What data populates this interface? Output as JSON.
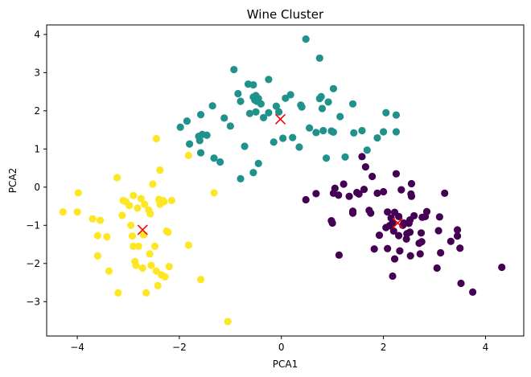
{
  "chart_data": {
    "type": "scatter",
    "title": "Wine Cluster",
    "xlabel": "PCA1",
    "ylabel": "PCA2",
    "xlim": [
      -4.6,
      4.75
    ],
    "ylim": [
      -3.9,
      4.25
    ],
    "xticks": [
      -4,
      -2,
      0,
      2,
      4
    ],
    "yticks": [
      -3,
      -2,
      -1,
      0,
      1,
      2,
      3,
      4
    ],
    "grid": false,
    "colors": {
      "cluster_0": "#440154",
      "cluster_1": "#21918c",
      "cluster_2": "#fde725",
      "centroid": "#ff0000"
    },
    "series": [
      {
        "cluster": 0,
        "color": "#440154",
        "points": [
          [
            0.48,
            -0.33
          ],
          [
            0.68,
            -0.17
          ],
          [
            0.98,
            -0.88
          ],
          [
            1.0,
            -0.94
          ],
          [
            1.02,
            -0.16
          ],
          [
            1.05,
            -0.03
          ],
          [
            1.12,
            -0.21
          ],
          [
            1.13,
            -1.78
          ],
          [
            1.22,
            0.08
          ],
          [
            1.33,
            -0.24
          ],
          [
            1.4,
            -0.68
          ],
          [
            1.4,
            -0.63
          ],
          [
            1.48,
            -0.14
          ],
          [
            1.52,
            -0.18
          ],
          [
            1.58,
            0.8
          ],
          [
            1.62,
            -0.06
          ],
          [
            1.65,
            0.53
          ],
          [
            1.72,
            -0.61
          ],
          [
            1.75,
            -0.68
          ],
          [
            1.78,
            0.28
          ],
          [
            1.82,
            -1.62
          ],
          [
            1.88,
            -0.16
          ],
          [
            1.92,
            -1.26
          ],
          [
            2.0,
            -0.12
          ],
          [
            2.05,
            -1.06
          ],
          [
            2.08,
            -0.65
          ],
          [
            2.08,
            -1.61
          ],
          [
            2.12,
            -1.01
          ],
          [
            2.15,
            -0.81
          ],
          [
            2.18,
            -0.93
          ],
          [
            2.18,
            -2.33
          ],
          [
            2.2,
            -1.15
          ],
          [
            2.22,
            -0.66
          ],
          [
            2.22,
            -1.88
          ],
          [
            2.25,
            0.35
          ],
          [
            2.3,
            -0.77
          ],
          [
            2.3,
            -1.27
          ],
          [
            2.32,
            -1.67
          ],
          [
            2.35,
            -0.07
          ],
          [
            2.38,
            -1.0
          ],
          [
            2.4,
            -0.94
          ],
          [
            2.45,
            -1.36
          ],
          [
            2.46,
            -1.22
          ],
          [
            2.5,
            -0.95
          ],
          [
            2.52,
            -0.86
          ],
          [
            2.52,
            -1.18
          ],
          [
            2.53,
            -1.8
          ],
          [
            2.54,
            -0.18
          ],
          [
            2.55,
            0.09
          ],
          [
            2.55,
            -0.24
          ],
          [
            2.6,
            -0.75
          ],
          [
            2.7,
            -1.47
          ],
          [
            2.72,
            -1.75
          ],
          [
            2.74,
            -1.2
          ],
          [
            2.75,
            -1.43
          ],
          [
            2.76,
            -0.79
          ],
          [
            2.82,
            -0.77
          ],
          [
            2.85,
            -0.64
          ],
          [
            3.05,
            -2.12
          ],
          [
            3.08,
            -1.14
          ],
          [
            3.1,
            -0.78
          ],
          [
            3.12,
            -1.72
          ],
          [
            3.2,
            -0.16
          ],
          [
            3.32,
            -1.42
          ],
          [
            3.45,
            -1.12
          ],
          [
            3.45,
            -1.28
          ],
          [
            3.5,
            -1.6
          ],
          [
            3.52,
            -2.52
          ],
          [
            3.75,
            -2.75
          ],
          [
            4.32,
            -2.1
          ]
        ]
      },
      {
        "cluster": 1,
        "color": "#21918c",
        "points": [
          [
            -1.98,
            1.57
          ],
          [
            -1.85,
            1.73
          ],
          [
            -1.8,
            1.13
          ],
          [
            -1.62,
            1.33
          ],
          [
            -1.6,
            1.22
          ],
          [
            -1.58,
            0.9
          ],
          [
            -1.58,
            1.9
          ],
          [
            -1.55,
            1.38
          ],
          [
            -1.46,
            1.36
          ],
          [
            -1.35,
            2.13
          ],
          [
            -1.32,
            0.76
          ],
          [
            -1.2,
            0.66
          ],
          [
            -1.12,
            1.81
          ],
          [
            -0.93,
            3.08
          ],
          [
            -0.85,
            2.45
          ],
          [
            -0.8,
            2.25
          ],
          [
            -0.8,
            0.22
          ],
          [
            -0.72,
            1.07
          ],
          [
            -0.65,
            2.7
          ],
          [
            -0.62,
            1.93
          ],
          [
            -0.55,
            2.68
          ],
          [
            -0.55,
            2.36
          ],
          [
            -0.55,
            0.38
          ],
          [
            -0.52,
            2.28
          ],
          [
            -0.5,
            2.4
          ],
          [
            -0.5,
            1.97
          ],
          [
            -0.48,
            2.25
          ],
          [
            -0.45,
            2.32
          ],
          [
            -0.45,
            0.62
          ],
          [
            -0.4,
            2.18
          ],
          [
            -0.25,
            2.82
          ],
          [
            -0.25,
            1.95
          ],
          [
            -0.15,
            1.18
          ],
          [
            -0.1,
            2.12
          ],
          [
            -0.05,
            1.97
          ],
          [
            0.03,
            1.28
          ],
          [
            0.08,
            2.33
          ],
          [
            0.18,
            2.42
          ],
          [
            0.35,
            1.05
          ],
          [
            0.38,
            2.15
          ],
          [
            0.4,
            2.1
          ],
          [
            0.48,
            3.88
          ],
          [
            0.68,
            1.43
          ],
          [
            0.75,
            2.32
          ],
          [
            0.75,
            3.38
          ],
          [
            0.78,
            2.37
          ],
          [
            0.8,
            2.06
          ],
          [
            0.82,
            1.48
          ],
          [
            0.88,
            0.76
          ],
          [
            0.92,
            2.23
          ],
          [
            0.98,
            1.47
          ],
          [
            1.02,
            1.44
          ],
          [
            1.02,
            2.58
          ],
          [
            1.25,
            0.79
          ],
          [
            1.4,
            2.18
          ],
          [
            1.42,
            1.42
          ],
          [
            1.58,
            1.48
          ],
          [
            1.68,
            0.97
          ],
          [
            1.88,
            1.29
          ],
          [
            2.0,
            1.45
          ],
          [
            2.05,
            1.95
          ],
          [
            2.25,
            1.45
          ],
          [
            2.25,
            1.89
          ],
          [
            -0.35,
            1.82
          ],
          [
            0.55,
            1.55
          ],
          [
            -1.0,
            1.6
          ],
          [
            0.22,
            1.3
          ],
          [
            1.15,
            1.85
          ]
        ]
      },
      {
        "cluster": 2,
        "color": "#fde725",
        "points": [
          [
            -4.28,
            -0.65
          ],
          [
            -4.0,
            -0.65
          ],
          [
            -3.98,
            -0.15
          ],
          [
            -3.7,
            -0.83
          ],
          [
            -3.6,
            -1.27
          ],
          [
            -3.6,
            -1.8
          ],
          [
            -3.55,
            -0.87
          ],
          [
            -3.42,
            -1.3
          ],
          [
            -3.38,
            -2.2
          ],
          [
            -3.22,
            0.25
          ],
          [
            -3.2,
            -2.77
          ],
          [
            -3.12,
            -0.74
          ],
          [
            -3.1,
            -0.35
          ],
          [
            -3.05,
            -0.38
          ],
          [
            -2.98,
            -0.48
          ],
          [
            -2.92,
            -1.28
          ],
          [
            -2.9,
            -1.55
          ],
          [
            -2.9,
            -0.22
          ],
          [
            -2.87,
            -1.95
          ],
          [
            -2.85,
            -2.05
          ],
          [
            -2.82,
            -0.55
          ],
          [
            -2.8,
            -1.55
          ],
          [
            -2.75,
            -0.3
          ],
          [
            -2.72,
            -2.12
          ],
          [
            -2.68,
            -0.45
          ],
          [
            -2.65,
            -2.77
          ],
          [
            -2.6,
            -0.6
          ],
          [
            -2.58,
            -1.75
          ],
          [
            -2.57,
            -0.7
          ],
          [
            -2.55,
            -2.05
          ],
          [
            -2.52,
            0.08
          ],
          [
            -2.48,
            -1.55
          ],
          [
            -2.45,
            -2.2
          ],
          [
            -2.45,
            1.27
          ],
          [
            -2.42,
            -2.58
          ],
          [
            -2.4,
            -0.32
          ],
          [
            -2.38,
            -0.45
          ],
          [
            -2.38,
            0.45
          ],
          [
            -2.35,
            -2.3
          ],
          [
            -2.32,
            -0.35
          ],
          [
            -2.3,
            -0.38
          ],
          [
            -2.28,
            -2.35
          ],
          [
            -2.25,
            -1.15
          ],
          [
            -2.22,
            -1.18
          ],
          [
            -2.2,
            -2.08
          ],
          [
            -2.15,
            -0.35
          ],
          [
            -1.82,
            -1.52
          ],
          [
            -1.82,
            0.83
          ],
          [
            -1.58,
            -2.42
          ],
          [
            -1.32,
            -0.15
          ],
          [
            -1.05,
            -3.52
          ],
          [
            -2.7,
            -1.25
          ],
          [
            -2.95,
            -1.0
          ]
        ]
      }
    ],
    "centroids": [
      [
        2.28,
        -0.94
      ],
      [
        -0.02,
        1.78
      ],
      [
        -2.72,
        -1.12
      ]
    ]
  }
}
